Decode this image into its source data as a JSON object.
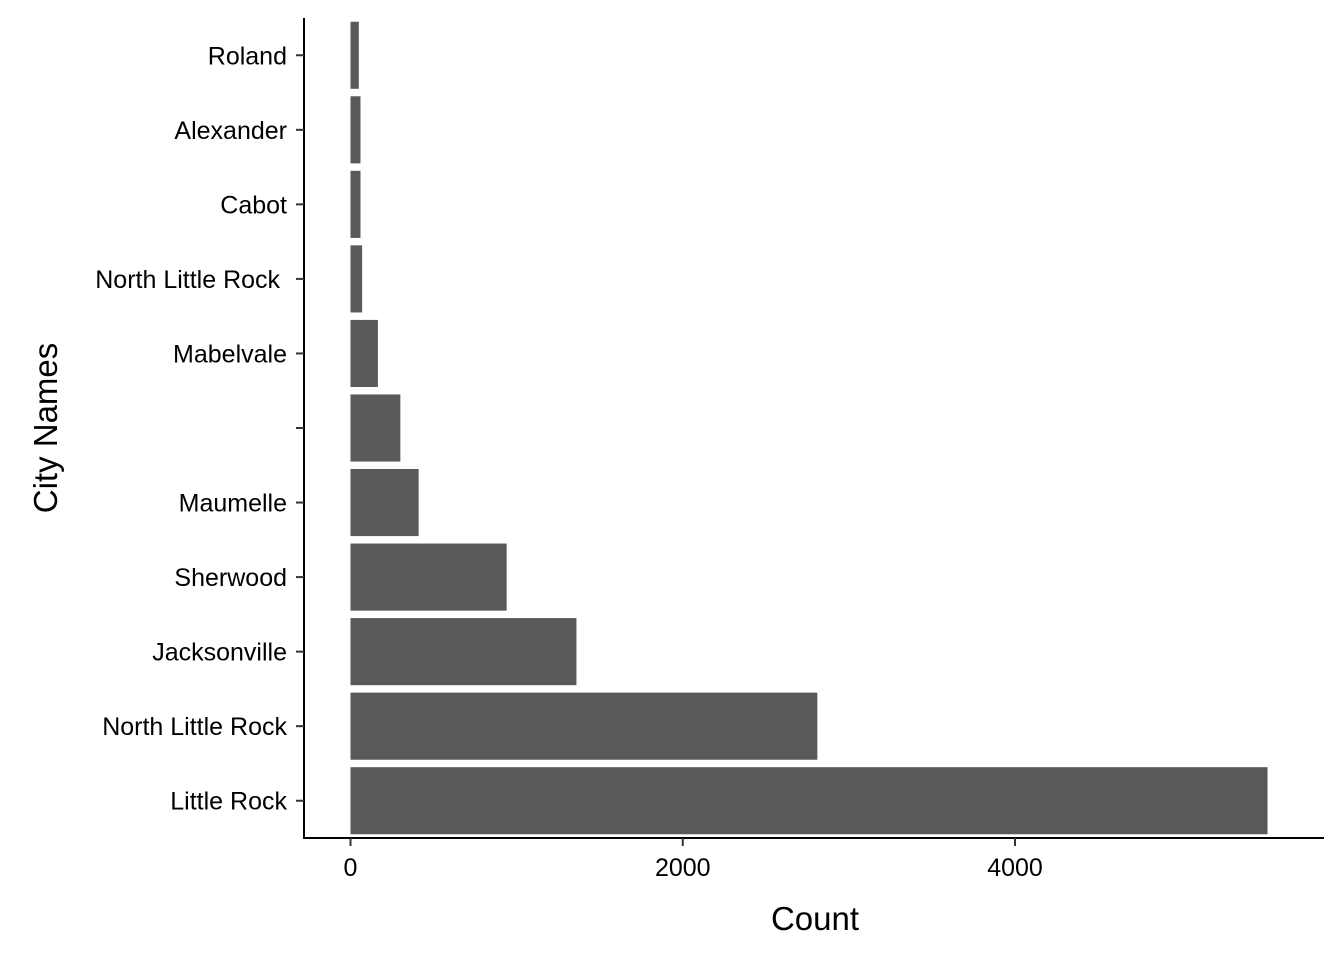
{
  "chart_data": {
    "type": "bar",
    "orientation": "horizontal",
    "title": "",
    "xlabel": "Count",
    "ylabel": "City Names",
    "categories": [
      "Little Rock",
      "North Little Rock",
      "Jacksonville",
      "Sherwood",
      "Maumelle",
      "",
      "Mabelvale",
      "North Little Rock ",
      "Cabot",
      "Alexander",
      "Roland"
    ],
    "values": [
      5520,
      2810,
      1360,
      940,
      410,
      300,
      165,
      70,
      60,
      60,
      50
    ],
    "xlim": [
      -280,
      5860
    ],
    "xticks": [
      0,
      2000,
      4000
    ],
    "xtick_labels": [
      "0",
      "2000",
      "4000"
    ],
    "bar_color": "#595959",
    "grid": false,
    "legend": "none"
  }
}
